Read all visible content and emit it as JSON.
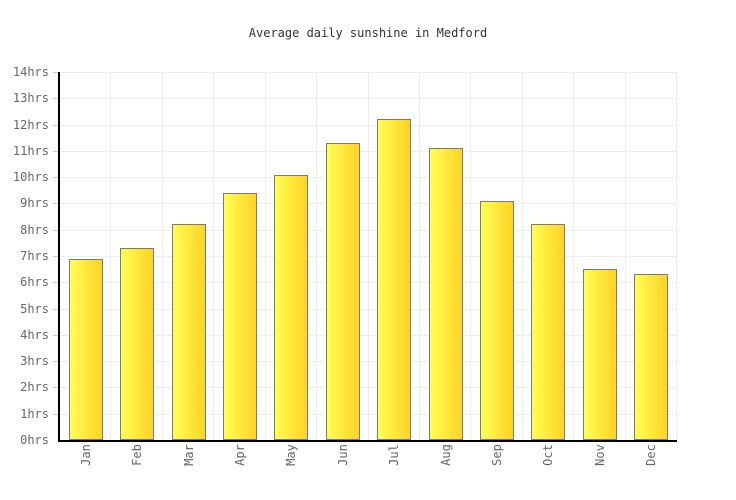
{
  "window": {
    "background": "#ffffff"
  },
  "chart_data": {
    "type": "bar",
    "title": "Average daily sunshine in Medford",
    "categories": [
      "Jan",
      "Feb",
      "Mar",
      "Apr",
      "May",
      "Jun",
      "Jul",
      "Aug",
      "Sep",
      "Oct",
      "Nov",
      "Dec"
    ],
    "values": [
      6.9,
      7.3,
      8.2,
      9.4,
      10.1,
      11.3,
      12.2,
      11.1,
      9.1,
      8.2,
      6.5,
      6.3
    ],
    "unit": "hrs",
    "xlabel": "",
    "ylabel": "",
    "ylim": [
      0,
      14
    ],
    "ytick_step": 1,
    "ytick_labels": [
      "0hrs",
      "1hrs",
      "2hrs",
      "3hrs",
      "4hrs",
      "5hrs",
      "6hrs",
      "7hrs",
      "8hrs",
      "9hrs",
      "10hrs",
      "11hrs",
      "12hrs",
      "13hrs",
      "14hrs"
    ],
    "grid": true,
    "legend": "none",
    "xlabel_rotation_deg": -90,
    "colors": {
      "bar_gradient_left": "#ffff55",
      "bar_gradient_right": "#ffd226",
      "bar_border": "#7a7a7a",
      "gridline": "#eeeeee",
      "tick": "#cccccc",
      "axis": "#000000",
      "tick_label": "#666666",
      "title": "#333333",
      "background": "#ffffff"
    }
  }
}
